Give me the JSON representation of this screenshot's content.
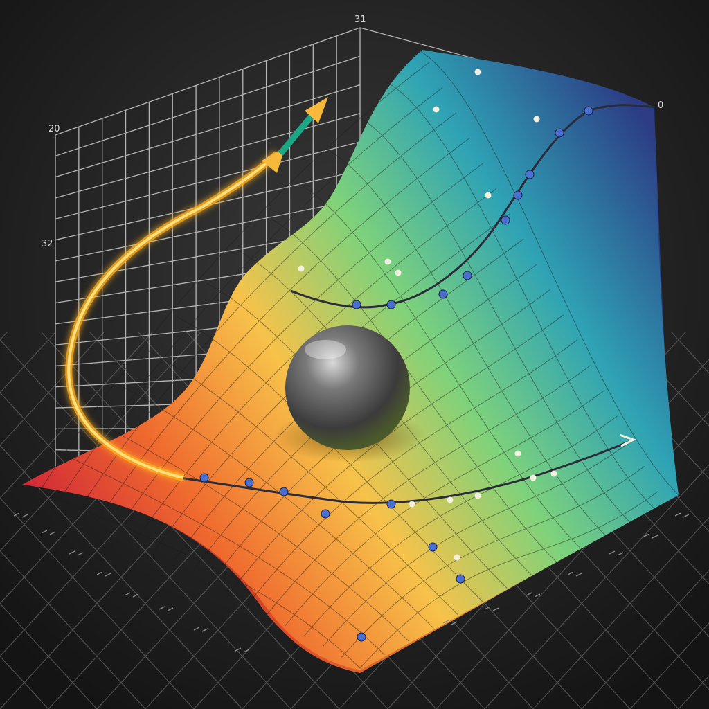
{
  "scene": {
    "colors": {
      "background": "#1f1f1f",
      "floor_grid": "#5a5a5a",
      "back_grid": "#cfcfcf",
      "path_glow": "#ffb020",
      "path_core": "#ffe07a",
      "arrow_head": "#f6b93b",
      "arrow_teal": "#1ba784",
      "ball": "#4a4a4a",
      "dot_blue": "#4a6fd1",
      "dot_white": "#f4f0e0"
    },
    "surface_gradient": [
      "#c9183a",
      "#ef6a2e",
      "#f7c24a",
      "#7ed27b",
      "#2fa3b5",
      "#2c3d85"
    ],
    "objects": [
      "glowing-path-arrow",
      "sphere",
      "rainbow-surface",
      "floor-grid",
      "back-grid"
    ]
  },
  "labels": {
    "top_label": "31",
    "left_top_label": "20",
    "left_mid_label": "32",
    "right_corner_label": "0"
  }
}
